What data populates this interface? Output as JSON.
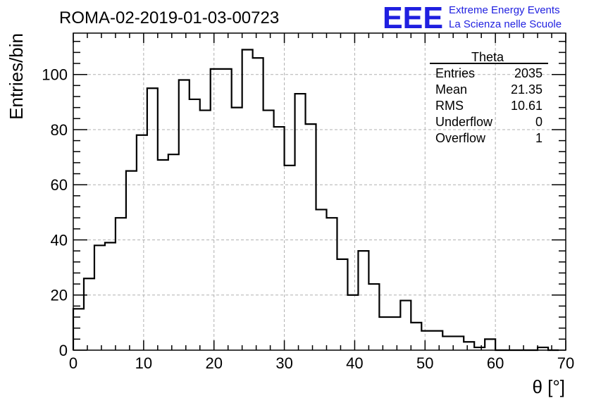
{
  "header": {
    "run_title": "ROMA-02-2019-01-03-00723",
    "logo_text": "EEE",
    "logo_line1": "Extreme Energy Events",
    "logo_line2": "La Scienza nelle Scuole"
  },
  "stats_box": {
    "title": "Theta",
    "rows": [
      {
        "label": "Entries",
        "value": "2035"
      },
      {
        "label": "Mean",
        "value": "21.35"
      },
      {
        "label": "RMS",
        "value": "10.61"
      },
      {
        "label": "Underflow",
        "value": "0"
      },
      {
        "label": "Overflow",
        "value": "1"
      }
    ]
  },
  "chart_data": {
    "type": "bar",
    "histogram": true,
    "bin_width": 1.5,
    "x_start": 0,
    "xlabel": "θ [°]",
    "ylabel": "Entries/bin",
    "xlim": [
      0,
      70
    ],
    "ylim": [
      0,
      115
    ],
    "x_ticks": [
      0,
      10,
      20,
      30,
      40,
      50,
      60,
      70
    ],
    "y_ticks": [
      0,
      20,
      40,
      60,
      80,
      100
    ],
    "grid": true,
    "values": [
      15,
      26,
      38,
      39,
      48,
      65,
      78,
      95,
      69,
      71,
      98,
      91,
      87,
      102,
      102,
      88,
      109,
      106,
      87,
      81,
      67,
      93,
      82,
      51,
      48,
      33,
      20,
      36,
      24,
      12,
      12,
      18,
      10,
      7,
      7,
      5,
      5,
      3,
      1,
      4,
      0,
      0,
      0,
      0,
      1,
      0
    ]
  }
}
